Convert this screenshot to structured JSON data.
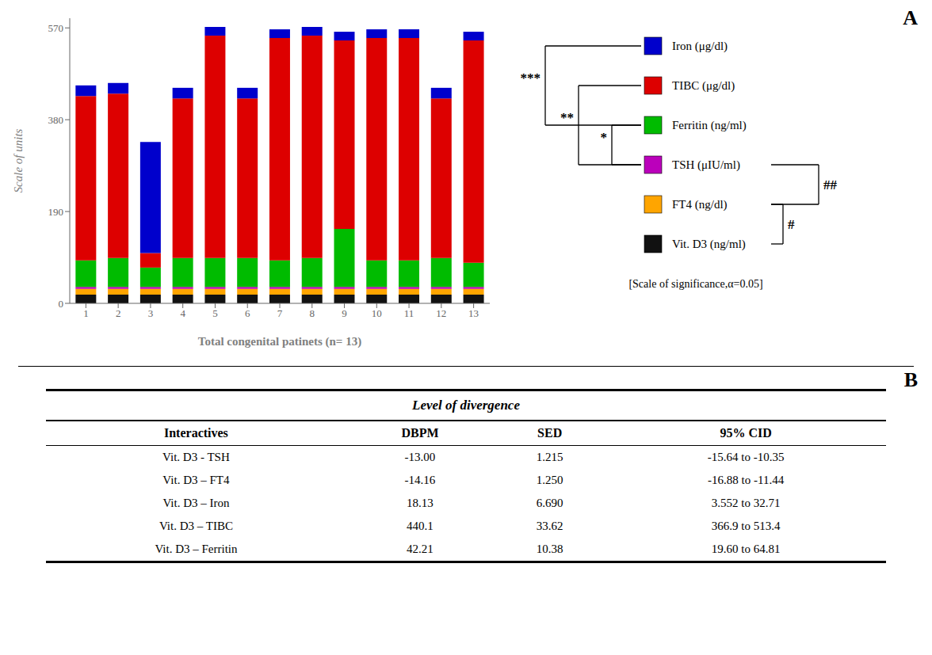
{
  "chart_data": {
    "type": "bar",
    "stacked": true,
    "grid": false,
    "legend": "right",
    "xlabel": "Total congenital patinets (n= 13)",
    "ylabel": "Scale of units",
    "categories": [
      "1",
      "2",
      "3",
      "4",
      "5",
      "6",
      "7",
      "8",
      "9",
      "10",
      "11",
      "12",
      "13"
    ],
    "ylim": [
      0,
      590
    ],
    "yticks": [
      0,
      190,
      380,
      570
    ],
    "series": [
      {
        "name": "Vit. D3 (ng/ml)",
        "color": "#111111",
        "values": [
          18,
          18,
          18,
          18,
          18,
          18,
          18,
          18,
          18,
          18,
          18,
          18,
          18
        ]
      },
      {
        "name": "FT4 (ng/dl)",
        "color": "#FFA500",
        "values": [
          12,
          12,
          12,
          12,
          12,
          12,
          12,
          12,
          12,
          12,
          12,
          12,
          12
        ]
      },
      {
        "name": "TSH (μIU/ml)",
        "color": "#BB00BB",
        "values": [
          4,
          4,
          4,
          4,
          4,
          4,
          4,
          4,
          4,
          4,
          4,
          4,
          4
        ]
      },
      {
        "name": "Ferritin (ng/ml)",
        "color": "#00BB00",
        "values": [
          55,
          60,
          40,
          60,
          60,
          60,
          55,
          60,
          120,
          55,
          55,
          60,
          50
        ]
      },
      {
        "name": "TIBC (μg/dl)",
        "color": "#DD0000",
        "values": [
          340,
          340,
          30,
          330,
          460,
          330,
          460,
          460,
          390,
          460,
          460,
          330,
          460
        ]
      },
      {
        "name": "Iron (μg/dl)",
        "color": "#0000CC",
        "values": [
          22,
          22,
          230,
          22,
          18,
          22,
          18,
          18,
          18,
          18,
          18,
          22,
          18
        ]
      }
    ],
    "brackets": [
      {
        "label": "***",
        "from": "Iron (μg/dl)",
        "to": "Ferritin (ng/ml)"
      },
      {
        "label": "**",
        "from": "TIBC (μg/dl)",
        "to": "TSH (μIU/ml)"
      },
      {
        "label": "*",
        "from": "Ferritin (ng/ml)",
        "to": "TSH (μIU/ml)"
      },
      {
        "label": "#",
        "from": "FT4 (ng/dl)",
        "to": "Vit. D3 (ng/ml)"
      },
      {
        "label": "##",
        "from": "TSH (μIU/ml)",
        "to": "FT4 (ng/dl)"
      }
    ],
    "note": "[Scale of significance,α=0.05]"
  },
  "panel_labels": [
    "A",
    "B"
  ],
  "table": {
    "title": "Level of divergence",
    "columns": [
      "Interactives",
      "DBPM",
      "SED",
      "95% CID"
    ],
    "rows": [
      [
        "Vit. D3 - TSH",
        "-13.00",
        "1.215",
        "-15.64 to -10.35"
      ],
      [
        "Vit. D3 – FT4",
        "-14.16",
        "1.250",
        "-16.88 to -11.44"
      ],
      [
        "Vit. D3 – Iron",
        "18.13",
        "6.690",
        "3.552 to 32.71"
      ],
      [
        "Vit. D3 – TIBC",
        "440.1",
        "33.62",
        "366.9 to 513.4"
      ],
      [
        "Vit. D3 – Ferritin",
        "42.21",
        "10.38",
        "19.60 to 64.81"
      ]
    ]
  }
}
